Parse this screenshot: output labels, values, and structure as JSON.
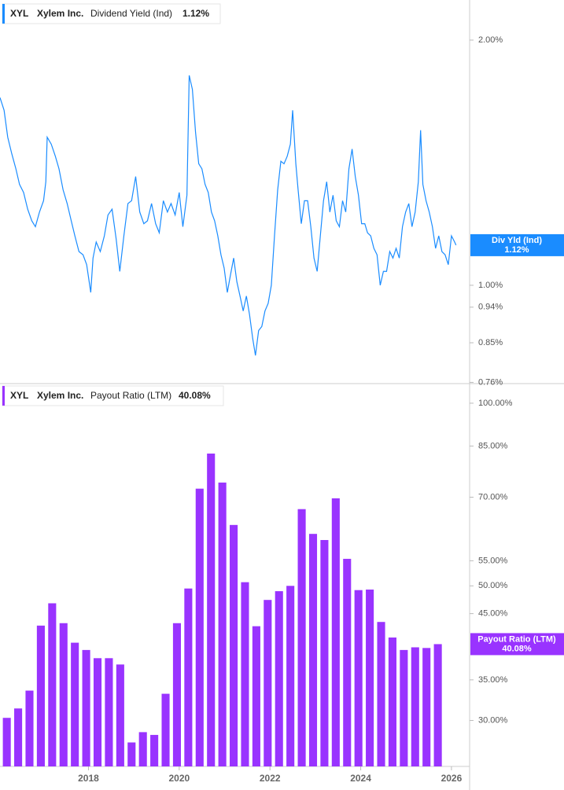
{
  "chart_data": [
    {
      "type": "line",
      "ticker": "XYL",
      "company": "Xylem Inc.",
      "log": true,
      "xlim": [
        2016.05,
        2026.4
      ],
      "ylim": [
        0.759,
        2.24
      ],
      "yticks": [
        {
          "value": 2,
          "label": "2.00%"
        },
        {
          "value": 1,
          "label": "1.00%"
        },
        {
          "value": 0.94,
          "label": "0.94%"
        },
        {
          "value": 0.85,
          "label": "0.85%"
        },
        {
          "value": 0.76,
          "label": "0.76%"
        }
      ],
      "current": {
        "name": "Div Yld (Ind)",
        "value": 1.12,
        "label": "1.12%"
      },
      "series": [
        {
          "name": "Dividend Yield (Ind)",
          "color": "#1a8cff",
          "x": [
            2016.05,
            2016.14,
            2016.22,
            2016.31,
            2016.4,
            2016.48,
            2016.57,
            2016.66,
            2016.75,
            2016.83,
            2016.92,
            2017.01,
            2017.06,
            2017.09,
            2017.18,
            2017.27,
            2017.35,
            2017.44,
            2017.53,
            2017.62,
            2017.7,
            2017.79,
            2017.88,
            2017.96,
            2018.05,
            2018.1,
            2018.17,
            2018.26,
            2018.35,
            2018.43,
            2018.52,
            2018.61,
            2018.69,
            2018.78,
            2018.87,
            2018.95,
            2019.04,
            2019.13,
            2019.22,
            2019.3,
            2019.39,
            2019.48,
            2019.56,
            2019.65,
            2019.74,
            2019.82,
            2019.91,
            2020.0,
            2020.08,
            2020.17,
            2020.22,
            2020.29,
            2020.36,
            2020.43,
            2020.5,
            2020.57,
            2020.64,
            2020.71,
            2020.78,
            2020.85,
            2020.92,
            2020.99,
            2021.06,
            2021.13,
            2021.2,
            2021.27,
            2021.34,
            2021.41,
            2021.48,
            2021.55,
            2021.62,
            2021.68,
            2021.75,
            2021.82,
            2021.89,
            2021.96,
            2022.03,
            2022.1,
            2022.17,
            2022.24,
            2022.31,
            2022.38,
            2022.45,
            2022.5,
            2022.57,
            2022.62,
            2022.69,
            2022.76,
            2022.83,
            2022.9,
            2022.97,
            2023.04,
            2023.11,
            2023.18,
            2023.25,
            2023.32,
            2023.39,
            2023.46,
            2023.53,
            2023.6,
            2023.67,
            2023.74,
            2023.81,
            2023.88,
            2023.95,
            2024.02,
            2024.09,
            2024.15,
            2024.22,
            2024.29,
            2024.36,
            2024.43,
            2024.5,
            2024.57,
            2024.64,
            2024.71,
            2024.78,
            2024.85,
            2024.92,
            2024.99,
            2025.06,
            2025.13,
            2025.2,
            2025.27,
            2025.32,
            2025.37,
            2025.44,
            2025.51,
            2025.58,
            2025.65,
            2025.72,
            2025.79,
            2025.86,
            2025.93,
            2026.0,
            2026.07,
            2026.1
          ],
          "values": [
            1.7,
            1.64,
            1.52,
            1.45,
            1.39,
            1.33,
            1.3,
            1.24,
            1.2,
            1.18,
            1.23,
            1.27,
            1.34,
            1.52,
            1.49,
            1.44,
            1.39,
            1.31,
            1.26,
            1.2,
            1.15,
            1.1,
            1.09,
            1.06,
            0.98,
            1.08,
            1.13,
            1.1,
            1.15,
            1.22,
            1.24,
            1.14,
            1.04,
            1.15,
            1.26,
            1.27,
            1.36,
            1.23,
            1.19,
            1.2,
            1.26,
            1.19,
            1.16,
            1.27,
            1.23,
            1.26,
            1.22,
            1.3,
            1.18,
            1.29,
            1.81,
            1.74,
            1.54,
            1.41,
            1.39,
            1.33,
            1.3,
            1.23,
            1.2,
            1.15,
            1.09,
            1.05,
            0.98,
            1.03,
            1.08,
            1.01,
            0.97,
            0.93,
            0.97,
            0.92,
            0.86,
            0.82,
            0.88,
            0.89,
            0.93,
            0.95,
            1.0,
            1.15,
            1.31,
            1.42,
            1.41,
            1.44,
            1.49,
            1.64,
            1.41,
            1.31,
            1.19,
            1.27,
            1.27,
            1.18,
            1.08,
            1.04,
            1.15,
            1.27,
            1.34,
            1.23,
            1.29,
            1.2,
            1.18,
            1.27,
            1.23,
            1.39,
            1.47,
            1.36,
            1.29,
            1.19,
            1.19,
            1.16,
            1.15,
            1.11,
            1.09,
            1.0,
            1.04,
            1.04,
            1.1,
            1.08,
            1.11,
            1.08,
            1.18,
            1.23,
            1.26,
            1.18,
            1.23,
            1.34,
            1.55,
            1.33,
            1.27,
            1.23,
            1.18,
            1.11,
            1.15,
            1.1,
            1.09,
            1.06,
            1.15,
            1.13,
            1.12
          ]
        }
      ]
    },
    {
      "type": "bar",
      "ticker": "XYL",
      "company": "Xylem Inc.",
      "log": true,
      "xlim": [
        2016.05,
        2026.4
      ],
      "xticks": [
        2018,
        2020,
        2022,
        2024,
        2026
      ],
      "ylim": [
        25.2,
        107.4
      ],
      "yticks": [
        {
          "value": 100,
          "label": "100.00%"
        },
        {
          "value": 85,
          "label": "85.00%"
        },
        {
          "value": 70,
          "label": "70.00%"
        },
        {
          "value": 55,
          "label": "55.00%"
        },
        {
          "value": 50,
          "label": "50.00%"
        },
        {
          "value": 45,
          "label": "45.00%"
        },
        {
          "value": 35,
          "label": "35.00%"
        },
        {
          "value": 30,
          "label": "30.00%"
        }
      ],
      "current": {
        "name": "Payout Ratio (LTM)",
        "value": 40.08,
        "label": "40.08%"
      },
      "series": [
        {
          "name": "Payout Ratio (LTM)",
          "color": "#9933ff",
          "x": [
            2016.2,
            2016.45,
            2016.7,
            2016.95,
            2017.2,
            2017.45,
            2017.7,
            2017.95,
            2018.2,
            2018.45,
            2018.7,
            2018.95,
            2019.2,
            2019.45,
            2019.7,
            2019.95,
            2020.2,
            2020.45,
            2020.7,
            2020.95,
            2021.2,
            2021.45,
            2021.7,
            2021.95,
            2022.2,
            2022.45,
            2022.7,
            2022.95,
            2023.2,
            2023.45,
            2023.7,
            2023.95,
            2024.2,
            2024.45,
            2024.7,
            2024.95,
            2025.2,
            2025.45,
            2025.7
          ],
          "values": [
            30.3,
            31.4,
            33.6,
            43.0,
            46.8,
            43.4,
            40.3,
            39.2,
            38.0,
            38.0,
            37.1,
            27.6,
            28.7,
            28.4,
            33.2,
            43.4,
            49.5,
            72.3,
            82.6,
            74.0,
            63.0,
            50.7,
            42.9,
            47.4,
            49.0,
            50.0,
            66.9,
            60.9,
            59.5,
            69.7,
            55.4,
            49.2,
            49.3,
            43.6,
            41.1,
            39.2,
            39.6,
            39.5,
            40.08
          ]
        }
      ]
    }
  ]
}
